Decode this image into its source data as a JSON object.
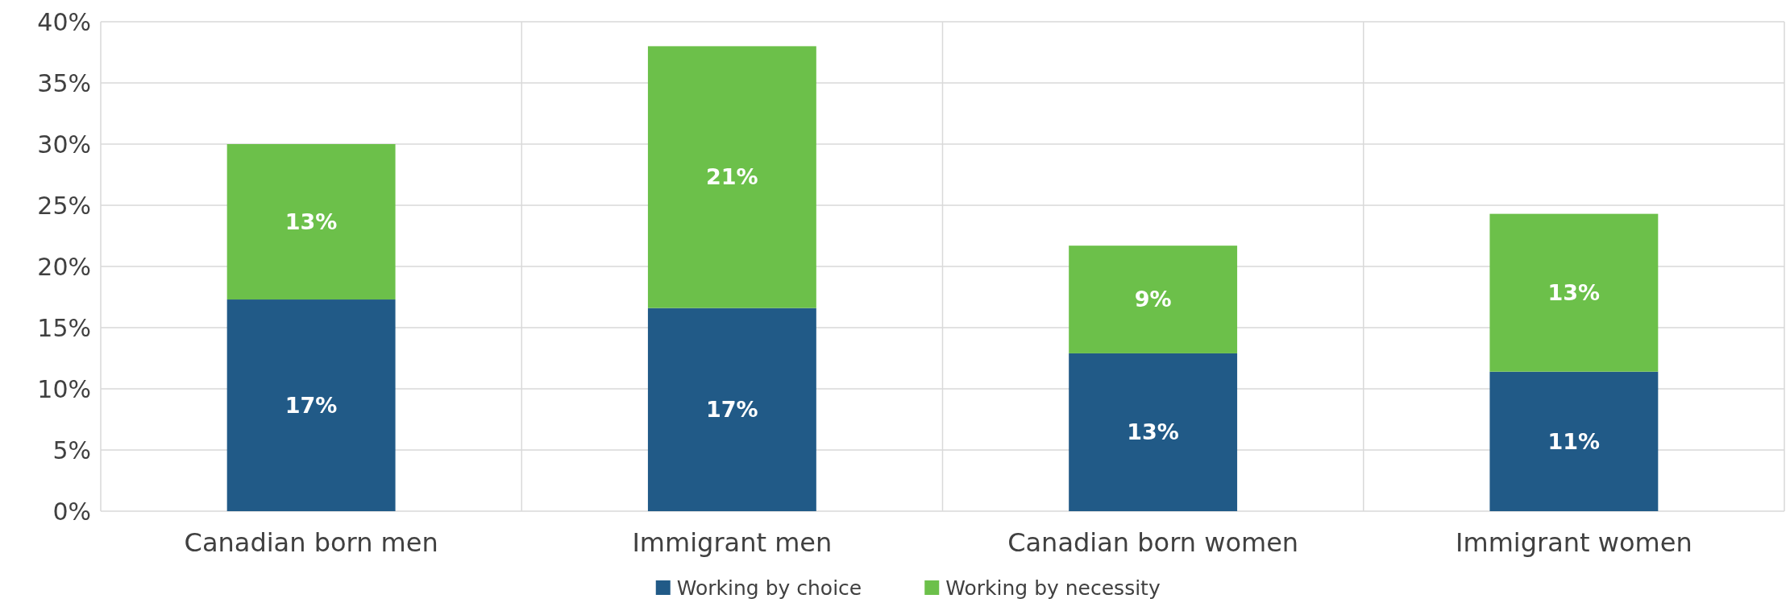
{
  "chart_data": {
    "type": "bar",
    "stacked": true,
    "categories": [
      "Canadian born men",
      "Immigrant men",
      "Canadian born women",
      "Immigrant women"
    ],
    "series": [
      {
        "name": "Working by choice",
        "color": "#215a87",
        "values": [
          17.3,
          16.6,
          12.9,
          11.4
        ],
        "value_labels": [
          "17%",
          "17%",
          "13%",
          "11%"
        ]
      },
      {
        "name": "Working by necessity",
        "color": "#6cc04a",
        "values": [
          12.7,
          21.4,
          8.8,
          12.9
        ],
        "value_labels": [
          "13%",
          "21%",
          "9%",
          "13%"
        ]
      }
    ],
    "ylim": [
      0,
      40
    ],
    "yticks": [
      {
        "value": 0,
        "label": "0%"
      },
      {
        "value": 5,
        "label": "5%"
      },
      {
        "value": 10,
        "label": "10%"
      },
      {
        "value": 15,
        "label": "15%"
      },
      {
        "value": 20,
        "label": "20%"
      },
      {
        "value": 25,
        "label": "25%"
      },
      {
        "value": 30,
        "label": "30%"
      },
      {
        "value": 35,
        "label": "35%"
      },
      {
        "value": 40,
        "label": "40%"
      }
    ],
    "grid": true,
    "legend": "bottom"
  }
}
